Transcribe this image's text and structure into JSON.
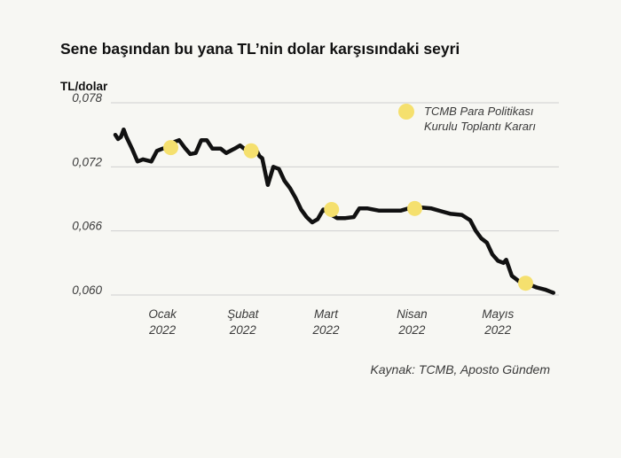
{
  "chart_data": {
    "type": "line",
    "title": "Sene başından bu yana TL’nin dolar karşısındaki seyri",
    "ylabel": "TL/dolar",
    "xlabel": "",
    "ylim": [
      0.059,
      0.0785
    ],
    "y_ticks": [
      "0,078",
      "0,072",
      "0,066",
      "0,060"
    ],
    "y_tick_values": [
      0.078,
      0.072,
      0.066,
      0.06
    ],
    "x_ticks": [
      {
        "month": "Ocak",
        "year": "2022",
        "day": 17
      },
      {
        "month": "Şubat",
        "year": "2022",
        "day": 46
      },
      {
        "month": "Mart",
        "year": "2022",
        "day": 76
      },
      {
        "month": "Nisan",
        "year": "2022",
        "day": 107
      },
      {
        "month": "Mayıs",
        "year": "2022",
        "day": 138
      }
    ],
    "x_range": [
      0,
      160
    ],
    "grid": "horizontal",
    "series": [
      {
        "color": "#111111",
        "points": [
          [
            0,
            0.075
          ],
          [
            1,
            0.0746
          ],
          [
            2,
            0.0748
          ],
          [
            3,
            0.0755
          ],
          [
            4,
            0.0748
          ],
          [
            6,
            0.0737
          ],
          [
            8,
            0.0725
          ],
          [
            10,
            0.0727
          ],
          [
            13,
            0.0725
          ],
          [
            15,
            0.0735
          ],
          [
            17,
            0.0737
          ],
          [
            19,
            0.0738
          ],
          [
            21,
            0.0743
          ],
          [
            23,
            0.0745
          ],
          [
            25,
            0.0738
          ],
          [
            27,
            0.0732
          ],
          [
            29,
            0.0733
          ],
          [
            31,
            0.0745
          ],
          [
            33,
            0.0745
          ],
          [
            35,
            0.0737
          ],
          [
            38,
            0.0737
          ],
          [
            40,
            0.0733
          ],
          [
            43,
            0.0737
          ],
          [
            45,
            0.074
          ],
          [
            47,
            0.0736
          ],
          [
            49,
            0.0735
          ],
          [
            51,
            0.0735
          ],
          [
            52,
            0.073
          ],
          [
            53,
            0.0728
          ],
          [
            55,
            0.0703
          ],
          [
            57,
            0.072
          ],
          [
            59,
            0.0718
          ],
          [
            61,
            0.0707
          ],
          [
            63,
            0.07
          ],
          [
            65,
            0.0691
          ],
          [
            67,
            0.068
          ],
          [
            69,
            0.0673
          ],
          [
            71,
            0.0668
          ],
          [
            73,
            0.0671
          ],
          [
            75,
            0.068
          ],
          [
            78,
            0.0675
          ],
          [
            80,
            0.0672
          ],
          [
            83,
            0.0672
          ],
          [
            86,
            0.0673
          ],
          [
            88,
            0.0681
          ],
          [
            91,
            0.0681
          ],
          [
            95,
            0.0679
          ],
          [
            99,
            0.0679
          ],
          [
            103,
            0.0679
          ],
          [
            107,
            0.0682
          ],
          [
            110,
            0.0682
          ],
          [
            114,
            0.0681
          ],
          [
            118,
            0.0678
          ],
          [
            121,
            0.0676
          ],
          [
            125,
            0.0675
          ],
          [
            128,
            0.067
          ],
          [
            130,
            0.066
          ],
          [
            132,
            0.0653
          ],
          [
            134,
            0.0649
          ],
          [
            136,
            0.0638
          ],
          [
            138,
            0.0632
          ],
          [
            140,
            0.063
          ],
          [
            141,
            0.0633
          ],
          [
            143,
            0.0618
          ],
          [
            146,
            0.0612
          ],
          [
            149,
            0.061
          ],
          [
            152,
            0.0607
          ],
          [
            155,
            0.0605
          ],
          [
            157,
            0.0603
          ],
          [
            158,
            0.0602
          ]
        ]
      }
    ],
    "annotations": {
      "legend_label_line1": "TCMB Para Politikası",
      "legend_label_line2": "Kurulu Toplantı Kararı",
      "legend_position": "top-right",
      "marker_color": "#f5e06e",
      "markers": [
        {
          "x": 20,
          "y": 0.0738
        },
        {
          "x": 49,
          "y": 0.0735
        },
        {
          "x": 78,
          "y": 0.068
        },
        {
          "x": 108,
          "y": 0.0681
        },
        {
          "x": 148,
          "y": 0.0611
        }
      ]
    },
    "source": "Kaynak: TCMB, Aposto Gündem"
  }
}
